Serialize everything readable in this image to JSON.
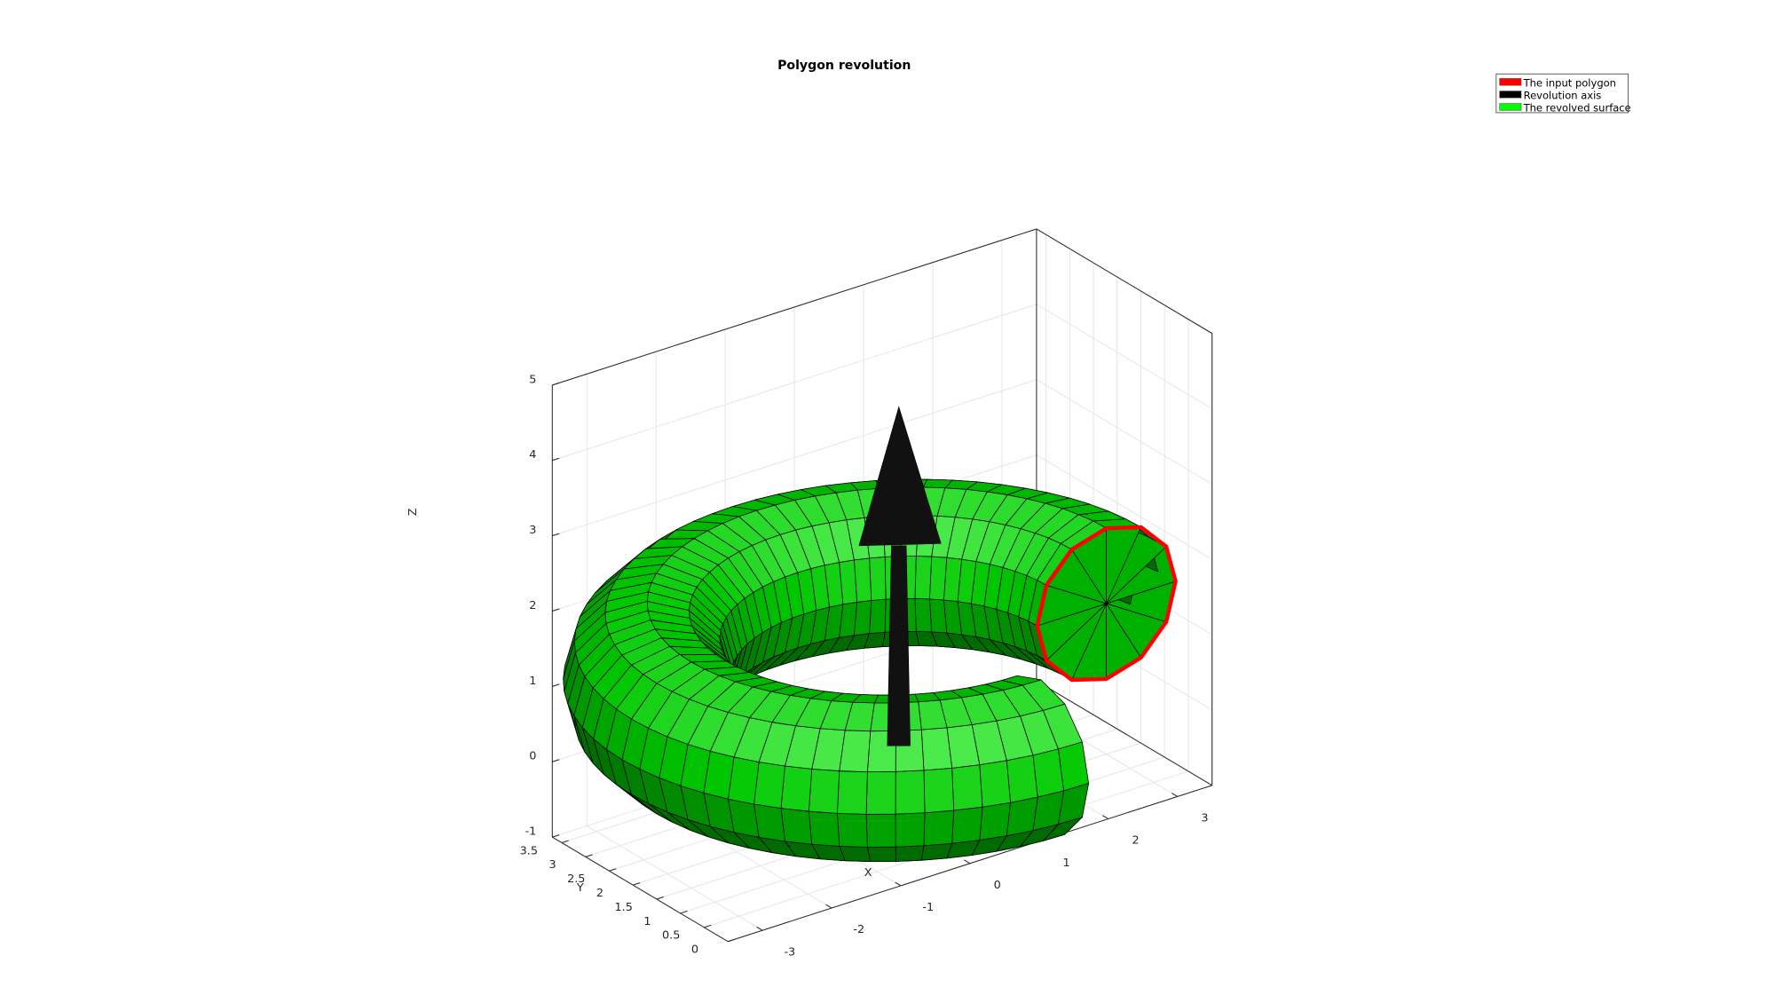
{
  "chart_data": {
    "type": "surface3d",
    "title": "Polygon revolution",
    "xlabel": "X",
    "ylabel": "Y",
    "zlabel": "Z",
    "xlim": [
      -3.5,
      3.5
    ],
    "ylim": [
      0,
      3.7
    ],
    "zlim": [
      -1,
      5
    ],
    "x_ticks": [
      "-3",
      "-2",
      "-1",
      "0",
      "1",
      "2",
      "3"
    ],
    "y_ticks": [
      "0",
      "0.5",
      "1",
      "1.5",
      "2",
      "2.5",
      "3",
      "3.5"
    ],
    "z_ticks": [
      "-1",
      "0",
      "1",
      "2",
      "3",
      "4",
      "5"
    ],
    "grid": true,
    "box": true,
    "legend_position": "top-right",
    "legend": [
      {
        "label": "The input polygon",
        "color": "#ff0000"
      },
      {
        "label": "Revolution axis",
        "color": "#000000"
      },
      {
        "label": "The revolved surface",
        "color": "#00ff00"
      }
    ],
    "input_polygon": {
      "name": "The input polygon",
      "center": [
        3,
        1.5,
        1
      ],
      "radius": 1,
      "vertices": 12,
      "color": "#ff0000"
    },
    "revolution_axis": {
      "name": "Revolution axis",
      "start": [
        0,
        1.5,
        0
      ],
      "end": [
        0,
        1.5,
        4.5
      ],
      "color": "#000000"
    },
    "revolved_surface": {
      "name": "The revolved surface",
      "major_radius": 3,
      "minor_radius": 1,
      "center": [
        0,
        1.5,
        1
      ],
      "sweep_deg": 270,
      "color": "#00ff00"
    }
  }
}
